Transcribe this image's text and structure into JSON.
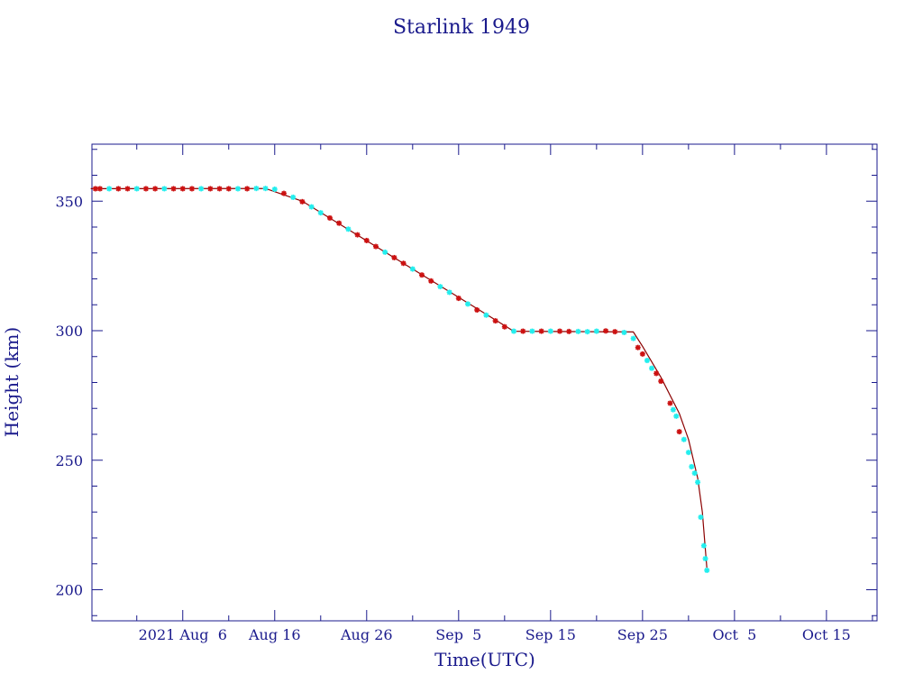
{
  "chart_data": {
    "type": "scatter",
    "title": "Starlink 1949",
    "xlabel": "Time(UTC)",
    "ylabel": "Height (km)",
    "xlim": [
      "2021-07-27T03:00",
      "2021-10-20T12:00"
    ],
    "ylim": [
      188,
      372
    ],
    "x_ticks": [
      {
        "date": "2021-08-06",
        "label": "2021 Aug  6"
      },
      {
        "date": "2021-08-16",
        "label": "Aug 16"
      },
      {
        "date": "2021-08-26",
        "label": "Aug 26"
      },
      {
        "date": "2021-09-05",
        "label": "Sep  5"
      },
      {
        "date": "2021-09-15",
        "label": "Sep 15"
      },
      {
        "date": "2021-09-25",
        "label": "Sep 25"
      },
      {
        "date": "2021-10-05",
        "label": "Oct  5"
      },
      {
        "date": "2021-10-15",
        "label": "Oct 15"
      }
    ],
    "y_ticks": [
      200,
      250,
      300,
      350
    ],
    "colors": {
      "frame": "#1a1a8c",
      "line": "#8b0000",
      "marker_red": "#cc1111",
      "marker_cyan": "#22eeee"
    },
    "curve": [
      {
        "x": "2021-07-27",
        "y": 354.8
      },
      {
        "x": "2021-08-15",
        "y": 354.9
      },
      {
        "x": "2021-08-19",
        "y": 350.0
      },
      {
        "x": "2021-09-11",
        "y": 299.8
      },
      {
        "x": "2021-09-24",
        "y": 299.5
      },
      {
        "x": "2021-09-25",
        "y": 294.0
      },
      {
        "x": "2021-09-27",
        "y": 282.0
      },
      {
        "x": "2021-09-29",
        "y": 268.0
      },
      {
        "x": "2021-09-30",
        "y": 258.0
      },
      {
        "x": "2021-10-01",
        "y": 243.0
      },
      {
        "x": "2021-10-01T12",
        "y": 230.0
      },
      {
        "x": "2021-10-02",
        "y": 208.0
      }
    ],
    "points": [
      {
        "x": "2021-07-27T12",
        "y": 354.8,
        "c": "red"
      },
      {
        "x": "2021-07-28",
        "y": 354.8,
        "c": "red"
      },
      {
        "x": "2021-07-29",
        "y": 354.8,
        "c": "cyan"
      },
      {
        "x": "2021-07-30",
        "y": 354.8,
        "c": "red"
      },
      {
        "x": "2021-07-31",
        "y": 354.8,
        "c": "red"
      },
      {
        "x": "2021-08-01",
        "y": 354.8,
        "c": "cyan"
      },
      {
        "x": "2021-08-02",
        "y": 354.8,
        "c": "red"
      },
      {
        "x": "2021-08-03",
        "y": 354.8,
        "c": "red"
      },
      {
        "x": "2021-08-04",
        "y": 354.8,
        "c": "cyan"
      },
      {
        "x": "2021-08-05",
        "y": 354.8,
        "c": "red"
      },
      {
        "x": "2021-08-06",
        "y": 354.8,
        "c": "red"
      },
      {
        "x": "2021-08-07",
        "y": 354.8,
        "c": "red"
      },
      {
        "x": "2021-08-08",
        "y": 354.8,
        "c": "cyan"
      },
      {
        "x": "2021-08-09",
        "y": 354.8,
        "c": "red"
      },
      {
        "x": "2021-08-10",
        "y": 354.8,
        "c": "red"
      },
      {
        "x": "2021-08-11",
        "y": 354.8,
        "c": "red"
      },
      {
        "x": "2021-08-12",
        "y": 354.8,
        "c": "cyan"
      },
      {
        "x": "2021-08-13",
        "y": 354.8,
        "c": "red"
      },
      {
        "x": "2021-08-14",
        "y": 354.9,
        "c": "cyan"
      },
      {
        "x": "2021-08-15",
        "y": 354.9,
        "c": "cyan"
      },
      {
        "x": "2021-08-16",
        "y": 354.6,
        "c": "cyan"
      },
      {
        "x": "2021-08-17",
        "y": 353.0,
        "c": "red"
      },
      {
        "x": "2021-08-18",
        "y": 351.5,
        "c": "cyan"
      },
      {
        "x": "2021-08-19",
        "y": 349.8,
        "c": "red"
      },
      {
        "x": "2021-08-20",
        "y": 347.8,
        "c": "cyan"
      },
      {
        "x": "2021-08-21",
        "y": 345.5,
        "c": "cyan"
      },
      {
        "x": "2021-08-22",
        "y": 343.5,
        "c": "red"
      },
      {
        "x": "2021-08-23",
        "y": 341.5,
        "c": "red"
      },
      {
        "x": "2021-08-24",
        "y": 339.2,
        "c": "cyan"
      },
      {
        "x": "2021-08-25",
        "y": 337.0,
        "c": "red"
      },
      {
        "x": "2021-08-26",
        "y": 334.8,
        "c": "red"
      },
      {
        "x": "2021-08-27",
        "y": 332.5,
        "c": "red"
      },
      {
        "x": "2021-08-28",
        "y": 330.3,
        "c": "cyan"
      },
      {
        "x": "2021-08-29",
        "y": 328.2,
        "c": "red"
      },
      {
        "x": "2021-08-30",
        "y": 326.0,
        "c": "red"
      },
      {
        "x": "2021-08-31",
        "y": 323.8,
        "c": "cyan"
      },
      {
        "x": "2021-09-01",
        "y": 321.5,
        "c": "red"
      },
      {
        "x": "2021-09-02",
        "y": 319.2,
        "c": "red"
      },
      {
        "x": "2021-09-03",
        "y": 317.0,
        "c": "cyan"
      },
      {
        "x": "2021-09-04",
        "y": 314.8,
        "c": "cyan"
      },
      {
        "x": "2021-09-05",
        "y": 312.5,
        "c": "red"
      },
      {
        "x": "2021-09-06",
        "y": 310.3,
        "c": "cyan"
      },
      {
        "x": "2021-09-07",
        "y": 308.0,
        "c": "red"
      },
      {
        "x": "2021-09-08",
        "y": 306.0,
        "c": "cyan"
      },
      {
        "x": "2021-09-09",
        "y": 303.8,
        "c": "red"
      },
      {
        "x": "2021-09-10",
        "y": 301.5,
        "c": "red"
      },
      {
        "x": "2021-09-11",
        "y": 299.8,
        "c": "cyan"
      },
      {
        "x": "2021-09-12",
        "y": 299.8,
        "c": "red"
      },
      {
        "x": "2021-09-13",
        "y": 299.8,
        "c": "cyan"
      },
      {
        "x": "2021-09-14",
        "y": 299.8,
        "c": "red"
      },
      {
        "x": "2021-09-15",
        "y": 299.8,
        "c": "cyan"
      },
      {
        "x": "2021-09-16",
        "y": 299.8,
        "c": "red"
      },
      {
        "x": "2021-09-17",
        "y": 299.7,
        "c": "red"
      },
      {
        "x": "2021-09-18",
        "y": 299.7,
        "c": "cyan"
      },
      {
        "x": "2021-09-19",
        "y": 299.6,
        "c": "cyan"
      },
      {
        "x": "2021-09-20",
        "y": 299.8,
        "c": "cyan"
      },
      {
        "x": "2021-09-21",
        "y": 299.9,
        "c": "red"
      },
      {
        "x": "2021-09-22",
        "y": 299.6,
        "c": "red"
      },
      {
        "x": "2021-09-23",
        "y": 299.3,
        "c": "cyan"
      },
      {
        "x": "2021-09-24",
        "y": 297.0,
        "c": "cyan"
      },
      {
        "x": "2021-09-24T12",
        "y": 293.5,
        "c": "red"
      },
      {
        "x": "2021-09-25",
        "y": 291.0,
        "c": "red"
      },
      {
        "x": "2021-09-25T12",
        "y": 288.5,
        "c": "cyan"
      },
      {
        "x": "2021-09-26",
        "y": 285.5,
        "c": "cyan"
      },
      {
        "x": "2021-09-26T12",
        "y": 283.5,
        "c": "red"
      },
      {
        "x": "2021-09-27",
        "y": 280.5,
        "c": "red"
      },
      {
        "x": "2021-09-28",
        "y": 272.0,
        "c": "red"
      },
      {
        "x": "2021-09-28T08",
        "y": 269.5,
        "c": "cyan"
      },
      {
        "x": "2021-09-28T16",
        "y": 267.0,
        "c": "cyan"
      },
      {
        "x": "2021-09-29",
        "y": 261.0,
        "c": "red"
      },
      {
        "x": "2021-09-29T12",
        "y": 258.0,
        "c": "cyan"
      },
      {
        "x": "2021-09-30",
        "y": 253.0,
        "c": "cyan"
      },
      {
        "x": "2021-09-30T08",
        "y": 247.5,
        "c": "cyan"
      },
      {
        "x": "2021-09-30T16",
        "y": 245.0,
        "c": "cyan"
      },
      {
        "x": "2021-10-01",
        "y": 241.5,
        "c": "cyan"
      },
      {
        "x": "2021-10-01T08",
        "y": 228.0,
        "c": "cyan"
      },
      {
        "x": "2021-10-01T16",
        "y": 217.0,
        "c": "cyan"
      },
      {
        "x": "2021-10-01T20",
        "y": 212.0,
        "c": "cyan"
      },
      {
        "x": "2021-10-02",
        "y": 207.5,
        "c": "cyan"
      }
    ]
  }
}
